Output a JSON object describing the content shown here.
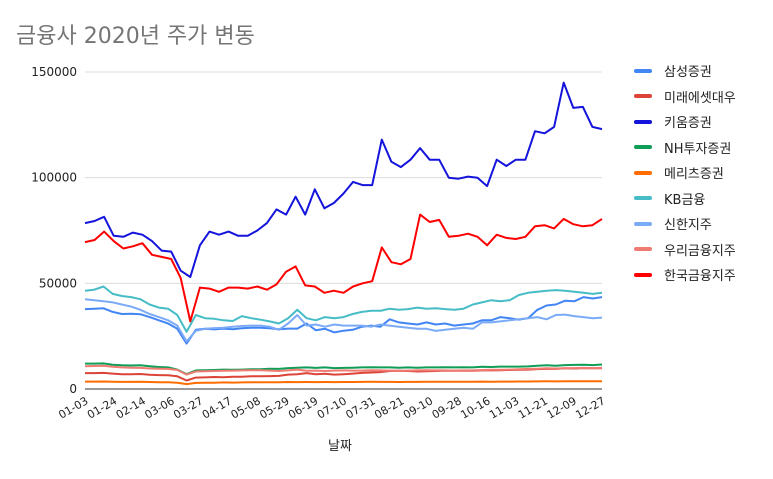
{
  "chart_data": {
    "type": "line",
    "title": "금융사 2020년 주가 변동",
    "xlabel": "날짜",
    "ylabel": "",
    "ylim": [
      0,
      150000
    ],
    "y_ticks": [
      "0",
      "50000",
      "100000",
      "150000"
    ],
    "x_tick_labels": [
      "01-03",
      "01-24",
      "02-14",
      "03-06",
      "03-27",
      "04-17",
      "05-08",
      "05-29",
      "06-19",
      "07-10",
      "07-31",
      "08-21",
      "09-10",
      "09-28",
      "10-16",
      "11-03",
      "11-21",
      "12-09",
      "12-27"
    ],
    "legend_position": "right",
    "grid": "horizontal",
    "series": [
      {
        "name": "삼성증권",
        "color": "#4285f4",
        "values": [
          37800,
          38000,
          38200,
          36500,
          35500,
          35600,
          35400,
          34000,
          32500,
          31000,
          28500,
          21500,
          28000,
          28500,
          28200,
          28600,
          28300,
          28700,
          29000,
          29000,
          28700,
          28300,
          28600,
          28600,
          31000,
          27800,
          28500,
          26800,
          27600,
          28000,
          29500,
          30000,
          29500,
          33000,
          31500,
          31000,
          30500,
          31500,
          30500,
          31000,
          30000,
          30500,
          31000,
          32500,
          32500,
          34000,
          33500,
          32800,
          33500,
          37500,
          39500,
          40000,
          41800,
          41500,
          43500,
          42800,
          43500
        ]
      },
      {
        "name": "미래에셋대우",
        "color": "#db4437",
        "values": [
          7500,
          7500,
          7600,
          7300,
          7000,
          7000,
          7100,
          6700,
          6600,
          6500,
          6000,
          4000,
          5400,
          5500,
          5700,
          5600,
          5800,
          5800,
          6000,
          6000,
          6100,
          6200,
          6800,
          7000,
          7500,
          7000,
          7200,
          6800,
          7000,
          7300,
          7600,
          7800,
          8000,
          8500,
          8600,
          8500,
          8300,
          8400,
          8500,
          8700,
          8600,
          8700,
          8600,
          8800,
          8800,
          8900,
          9000,
          9100,
          9200,
          9400,
          9500,
          9500,
          9800,
          9700,
          9900,
          9800,
          9800
        ]
      },
      {
        "name": "키움증권",
        "color": "#1414dc",
        "values": [
          78500,
          79500,
          81500,
          72500,
          72000,
          74000,
          73000,
          70000,
          65500,
          65000,
          56000,
          53000,
          68000,
          74500,
          73000,
          74500,
          72500,
          72500,
          75000,
          78500,
          85000,
          82500,
          91000,
          82500,
          94500,
          85500,
          88000,
          92500,
          98000,
          96500,
          96500,
          118000,
          107500,
          105000,
          108500,
          114000,
          108500,
          108500,
          100000,
          99500,
          100500,
          100000,
          96000,
          108500,
          105500,
          108500,
          108500,
          122000,
          121000,
          124000,
          145000,
          133000,
          133500,
          124000,
          123000
        ]
      },
      {
        "name": "NH투자증권",
        "color": "#0f9d58",
        "values": [
          12000,
          12000,
          12100,
          11500,
          11200,
          11100,
          11200,
          10800,
          10400,
          10200,
          9200,
          7000,
          8800,
          8900,
          9000,
          9200,
          9100,
          9200,
          9300,
          9300,
          9600,
          9500,
          9900,
          10100,
          10200,
          10000,
          10200,
          9900,
          10000,
          10100,
          10200,
          10300,
          10200,
          10200,
          10100,
          10200,
          10100,
          10200,
          10200,
          10300,
          10200,
          10300,
          10200,
          10500,
          10400,
          10600,
          10600,
          10600,
          10700,
          11000,
          11200,
          11000,
          11300,
          11400,
          11500,
          11300,
          11600
        ]
      },
      {
        "name": "메리츠증권",
        "color": "#ff6d00",
        "values": [
          3500,
          3500,
          3550,
          3400,
          3350,
          3350,
          3400,
          3300,
          3200,
          3200,
          3000,
          2300,
          2900,
          2950,
          3000,
          3100,
          3050,
          3100,
          3150,
          3150,
          3200,
          3200,
          3300,
          3250,
          3300,
          3250,
          3300,
          3250,
          3300,
          3300,
          3350,
          3400,
          3350,
          3350,
          3300,
          3350,
          3350,
          3400,
          3400,
          3450,
          3400,
          3450,
          3400,
          3500,
          3450,
          3500,
          3500,
          3550,
          3550,
          3600,
          3650,
          3600,
          3650,
          3700,
          3700,
          3650,
          3700
        ]
      },
      {
        "name": "KB금융",
        "color": "#46bdc6",
        "values": [
          46500,
          47000,
          48500,
          45000,
          44000,
          43500,
          42500,
          40000,
          38500,
          38000,
          35000,
          27000,
          35000,
          33500,
          33200,
          32500,
          32200,
          34500,
          33500,
          32800,
          32000,
          31000,
          33500,
          37500,
          33500,
          32500,
          34000,
          33500,
          34000,
          35500,
          36500,
          37000,
          37000,
          38000,
          37500,
          37800,
          38500,
          38000,
          38200,
          37800,
          37500,
          38000,
          40000,
          41000,
          42000,
          41500,
          42000,
          44500,
          45500,
          46000,
          46500,
          46800,
          46500,
          46000,
          45500,
          45000,
          45500
        ]
      },
      {
        "name": "신한지주",
        "color": "#7baaf7",
        "values": [
          42500,
          42000,
          41500,
          41000,
          40000,
          39000,
          37500,
          35500,
          34000,
          32500,
          30000,
          22500,
          27500,
          28500,
          28800,
          29000,
          29500,
          29800,
          30000,
          30000,
          29500,
          28000,
          31000,
          35000,
          30000,
          30500,
          29500,
          30500,
          30000,
          30000,
          30000,
          29500,
          30500,
          30000,
          29500,
          29000,
          28500,
          28500,
          27500,
          28000,
          28500,
          29000,
          28500,
          31500,
          31500,
          32000,
          32500,
          33000,
          33500,
          34000,
          33000,
          35000,
          35200,
          34500,
          34000,
          33500,
          33800
        ]
      },
      {
        "name": "우리금융지주",
        "color": "#f07b72",
        "values": [
          10800,
          10900,
          11000,
          10500,
          10200,
          10100,
          10000,
          9700,
          9600,
          9500,
          9000,
          6800,
          8300,
          8400,
          8500,
          8600,
          8700,
          8800,
          8900,
          8900,
          8700,
          8500,
          8800,
          9200,
          8600,
          8700,
          8500,
          8700,
          8800,
          8700,
          8700,
          8900,
          8800,
          8700,
          8600,
          8700,
          8800,
          8900,
          8800,
          8800,
          8700,
          8800,
          8800,
          9000,
          9100,
          9100,
          9200,
          9300,
          9500,
          9600,
          9800,
          9700,
          9800,
          9900,
          10000,
          9900,
          10000
        ]
      },
      {
        "name": "한국금융지주",
        "color": "#ff0000",
        "values": [
          69500,
          70500,
          74500,
          70000,
          66500,
          67500,
          69000,
          63500,
          62500,
          61500,
          52500,
          32000,
          48000,
          47500,
          46000,
          48000,
          48000,
          47500,
          48500,
          47000,
          49500,
          55500,
          58000,
          49000,
          48500,
          45500,
          46500,
          45500,
          48500,
          50000,
          51000,
          67000,
          60000,
          59000,
          61500,
          82500,
          79000,
          80000,
          72000,
          72500,
          73500,
          72000,
          68000,
          73000,
          71500,
          71000,
          72000,
          77000,
          77500,
          76000,
          80500,
          78000,
          77000,
          77500,
          80500
        ]
      }
    ]
  }
}
